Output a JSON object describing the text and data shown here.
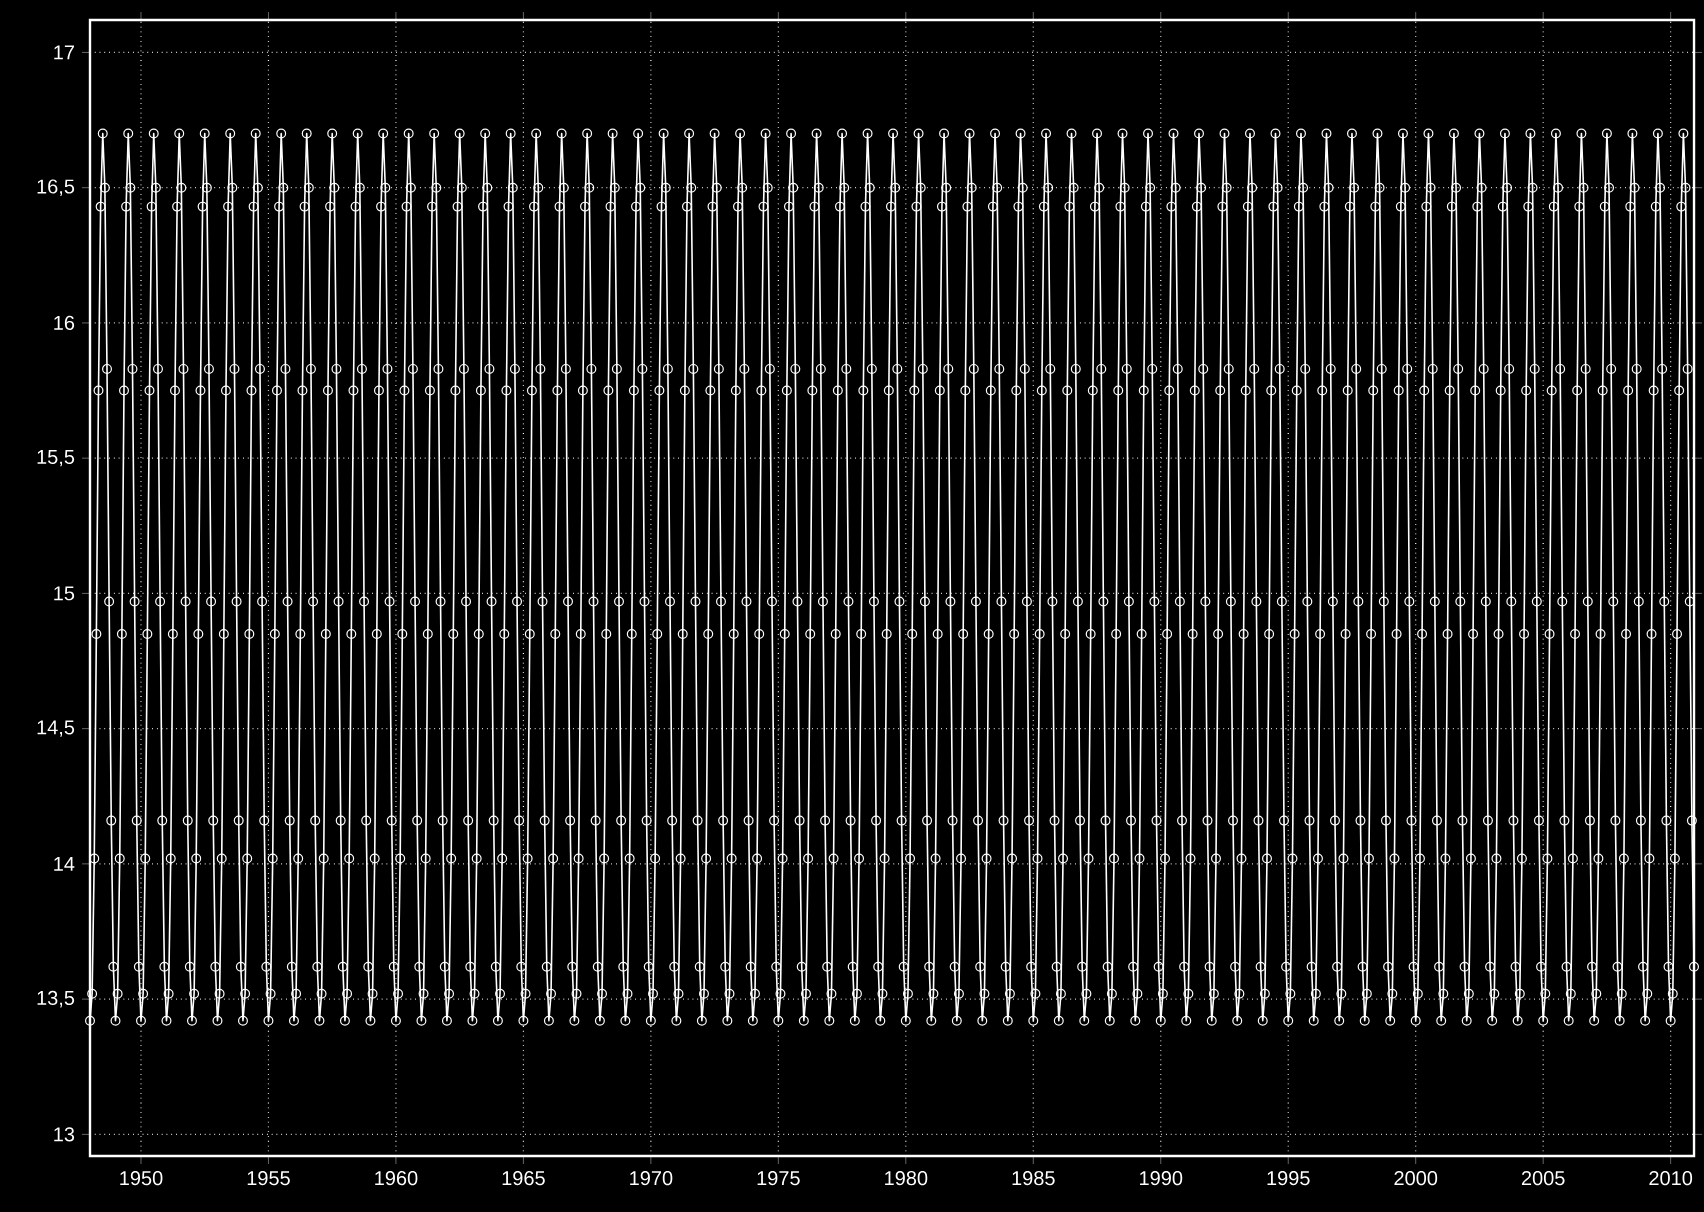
{
  "chart_data": {
    "type": "line",
    "color": "#ffffff",
    "marker": "circle",
    "line_style": "solid",
    "grid": true,
    "xlim": [
      "1948-01",
      "2010-12"
    ],
    "ylim": [
      12.92,
      17.12
    ],
    "xticks": [
      "1950",
      "1955",
      "1960",
      "1965",
      "1970",
      "1975",
      "1980",
      "1985",
      "1990",
      "1995",
      "2000",
      "2005",
      "2010"
    ],
    "yticks": [
      13,
      {
        "value": 13.5,
        "label": "13,5"
      },
      14,
      {
        "value": 14.5,
        "label": "14,5"
      },
      15,
      {
        "value": 15.5,
        "label": "15,5"
      },
      16,
      {
        "value": 16.5,
        "label": "16,5"
      },
      17
    ],
    "x": [
      "1948-01",
      "1948-02",
      "1948-03",
      "1948-04",
      "1948-05",
      "1948-06",
      "1948-07",
      "1948-08",
      "1948-09",
      "1948-10",
      "1948-11",
      "1948-12",
      "1949-01",
      "1949-02",
      "1949-03",
      "1949-04",
      "1949-05",
      "1949-06",
      "1949-07",
      "1949-08",
      "1949-09",
      "1949-10",
      "1949-11",
      "1949-12",
      "1950-01",
      "1950-02",
      "1950-03",
      "1950-04",
      "1950-05",
      "1950-06",
      "1950-07",
      "1950-08",
      "1950-09",
      "1950-10",
      "1950-11",
      "1950-12",
      "1951-01",
      "1951-02",
      "1951-03",
      "1951-04",
      "1951-05",
      "1951-06",
      "1951-07",
      "1951-08",
      "1951-09",
      "1951-10",
      "1951-11",
      "1951-12",
      "1952-01",
      "1952-02",
      "1952-03",
      "1952-04",
      "1952-05",
      "1952-06",
      "1952-07",
      "1952-08",
      "1952-09",
      "1952-10",
      "1952-11",
      "1952-12",
      "1953-01",
      "1953-02",
      "1953-03",
      "1953-04",
      "1953-05",
      "1953-06",
      "1953-07",
      "1953-08",
      "1953-09",
      "1953-10",
      "1953-11",
      "1953-12",
      "1954-01",
      "1954-02",
      "1954-03",
      "1954-04",
      "1954-05",
      "1954-06",
      "1954-07",
      "1954-08",
      "1954-09",
      "1954-10",
      "1954-11",
      "1954-12",
      "1955-01",
      "1955-02",
      "1955-03",
      "1955-04",
      "1955-05",
      "1955-06",
      "1955-07",
      "1955-08",
      "1955-09",
      "1955-10",
      "1955-11",
      "1955-12",
      "1956-01",
      "1956-02",
      "1956-03",
      "1956-04",
      "1956-05",
      "1956-06",
      "1956-07",
      "1956-08",
      "1956-09",
      "1956-10",
      "1956-11",
      "1956-12",
      "1957-01",
      "1957-02",
      "1957-03",
      "1957-04",
      "1957-05",
      "1957-06",
      "1957-07",
      "1957-08",
      "1957-09",
      "1957-10",
      "1957-11",
      "1957-12",
      "1958-01",
      "1958-02",
      "1958-03",
      "1958-04",
      "1958-05",
      "1958-06",
      "1958-07",
      "1958-08",
      "1958-09",
      "1958-10",
      "1958-11",
      "1958-12",
      "1959-01",
      "1959-02",
      "1959-03",
      "1959-04",
      "1959-05",
      "1959-06",
      "1959-07",
      "1959-08",
      "1959-09",
      "1959-10",
      "1959-11",
      "1959-12",
      "1960-01",
      "1960-02",
      "1960-03",
      "1960-04",
      "1960-05",
      "1960-06",
      "1960-07",
      "1960-08",
      "1960-09",
      "1960-10",
      "1960-11",
      "1960-12",
      "1961-01",
      "1961-02",
      "1961-03",
      "1961-04",
      "1961-05",
      "1961-06",
      "1961-07",
      "1961-08",
      "1961-09",
      "1961-10",
      "1961-11",
      "1961-12",
      "1962-01",
      "1962-02",
      "1962-03",
      "1962-04",
      "1962-05",
      "1962-06",
      "1962-07",
      "1962-08",
      "1962-09",
      "1962-10",
      "1962-11",
      "1962-12",
      "1963-01",
      "1963-02",
      "1963-03",
      "1963-04",
      "1963-05",
      "1963-06",
      "1963-07",
      "1963-08",
      "1963-09",
      "1963-10",
      "1963-11",
      "1963-12",
      "1964-01",
      "1964-02",
      "1964-03",
      "1964-04",
      "1964-05",
      "1964-06",
      "1964-07",
      "1964-08",
      "1964-09",
      "1964-10",
      "1964-11",
      "1964-12",
      "1965-01",
      "1965-02",
      "1965-03",
      "1965-04",
      "1965-05",
      "1965-06",
      "1965-07",
      "1965-08",
      "1965-09",
      "1965-10",
      "1965-11",
      "1965-12",
      "1966-01",
      "1966-02",
      "1966-03",
      "1966-04",
      "1966-05",
      "1966-06",
      "1966-07",
      "1966-08",
      "1966-09",
      "1966-10",
      "1966-11",
      "1966-12",
      "1967-01",
      "1967-02",
      "1967-03",
      "1967-04",
      "1967-05",
      "1967-06",
      "1967-07",
      "1967-08",
      "1967-09",
      "1967-10",
      "1967-11",
      "1967-12",
      "1968-01",
      "1968-02",
      "1968-03",
      "1968-04",
      "1968-05",
      "1968-06",
      "1968-07",
      "1968-08",
      "1968-09",
      "1968-10",
      "1968-11",
      "1968-12",
      "1969-01",
      "1969-02",
      "1969-03",
      "1969-04",
      "1969-05",
      "1969-06",
      "1969-07",
      "1969-08",
      "1969-09",
      "1969-10",
      "1969-11",
      "1969-12",
      "1970-01",
      "1970-02",
      "1970-03",
      "1970-04",
      "1970-05",
      "1970-06",
      "1970-07",
      "1970-08",
      "1970-09",
      "1970-10",
      "1970-11",
      "1970-12",
      "1971-01",
      "1971-02",
      "1971-03",
      "1971-04",
      "1971-05",
      "1971-06",
      "1971-07",
      "1971-08",
      "1971-09",
      "1971-10",
      "1971-11",
      "1971-12",
      "1972-01",
      "1972-02",
      "1972-03",
      "1972-04",
      "1972-05",
      "1972-06",
      "1972-07",
      "1972-08",
      "1972-09",
      "1972-10",
      "1972-11",
      "1972-12",
      "1973-01",
      "1973-02",
      "1973-03",
      "1973-04",
      "1973-05",
      "1973-06",
      "1973-07",
      "1973-08",
      "1973-09",
      "1973-10",
      "1973-11",
      "1973-12",
      "1974-01",
      "1974-02",
      "1974-03",
      "1974-04",
      "1974-05",
      "1974-06",
      "1974-07",
      "1974-08",
      "1974-09",
      "1974-10",
      "1974-11",
      "1974-12",
      "1975-01",
      "1975-02",
      "1975-03",
      "1975-04",
      "1975-05",
      "1975-06",
      "1975-07",
      "1975-08",
      "1975-09",
      "1975-10",
      "1975-11",
      "1975-12",
      "1976-01",
      "1976-02",
      "1976-03",
      "1976-04",
      "1976-05",
      "1976-06",
      "1976-07",
      "1976-08",
      "1976-09",
      "1976-10",
      "1976-11",
      "1976-12",
      "1977-01",
      "1977-02",
      "1977-03",
      "1977-04",
      "1977-05",
      "1977-06",
      "1977-07",
      "1977-08",
      "1977-09",
      "1977-10",
      "1977-11",
      "1977-12",
      "1978-01",
      "1978-02",
      "1978-03",
      "1978-04",
      "1978-05",
      "1978-06",
      "1978-07",
      "1978-08",
      "1978-09",
      "1978-10",
      "1978-11",
      "1978-12",
      "1979-01",
      "1979-02",
      "1979-03",
      "1979-04",
      "1979-05",
      "1979-06",
      "1979-07",
      "1979-08",
      "1979-09",
      "1979-10",
      "1979-11",
      "1979-12",
      "1980-01",
      "1980-02",
      "1980-03",
      "1980-04",
      "1980-05",
      "1980-06",
      "1980-07",
      "1980-08",
      "1980-09",
      "1980-10",
      "1980-11",
      "1980-12",
      "1981-01",
      "1981-02",
      "1981-03",
      "1981-04",
      "1981-05",
      "1981-06",
      "1981-07",
      "1981-08",
      "1981-09",
      "1981-10",
      "1981-11",
      "1981-12",
      "1982-01",
      "1982-02",
      "1982-03",
      "1982-04",
      "1982-05",
      "1982-06",
      "1982-07",
      "1982-08",
      "1982-09",
      "1982-10",
      "1982-11",
      "1982-12",
      "1983-01",
      "1983-02",
      "1983-03",
      "1983-04",
      "1983-05",
      "1983-06",
      "1983-07",
      "1983-08",
      "1983-09",
      "1983-10",
      "1983-11",
      "1983-12",
      "1984-01",
      "1984-02",
      "1984-03",
      "1984-04",
      "1984-05",
      "1984-06",
      "1984-07",
      "1984-08",
      "1984-09",
      "1984-10",
      "1984-11",
      "1984-12",
      "1985-01",
      "1985-02",
      "1985-03",
      "1985-04",
      "1985-05",
      "1985-06",
      "1985-07",
      "1985-08",
      "1985-09",
      "1985-10",
      "1985-11",
      "1985-12",
      "1986-01",
      "1986-02",
      "1986-03",
      "1986-04",
      "1986-05",
      "1986-06",
      "1986-07",
      "1986-08",
      "1986-09",
      "1986-10",
      "1986-11",
      "1986-12",
      "1987-01",
      "1987-02",
      "1987-03",
      "1987-04",
      "1987-05",
      "1987-06",
      "1987-07",
      "1987-08",
      "1987-09",
      "1987-10",
      "1987-11",
      "1987-12",
      "1988-01",
      "1988-02",
      "1988-03",
      "1988-04",
      "1988-05",
      "1988-06",
      "1988-07",
      "1988-08",
      "1988-09",
      "1988-10",
      "1988-11",
      "1988-12",
      "1989-01",
      "1989-02",
      "1989-03",
      "1989-04",
      "1989-05",
      "1989-06",
      "1989-07",
      "1989-08",
      "1989-09",
      "1989-10",
      "1989-11",
      "1989-12",
      "1990-01",
      "1990-02",
      "1990-03",
      "1990-04",
      "1990-05",
      "1990-06",
      "1990-07",
      "1990-08",
      "1990-09",
      "1990-10",
      "1990-11",
      "1990-12",
      "1991-01",
      "1991-02",
      "1991-03",
      "1991-04",
      "1991-05",
      "1991-06",
      "1991-07",
      "1991-08",
      "1991-09",
      "1991-10",
      "1991-11",
      "1991-12",
      "1992-01",
      "1992-02",
      "1992-03",
      "1992-04",
      "1992-05",
      "1992-06",
      "1992-07",
      "1992-08",
      "1992-09",
      "1992-10",
      "1992-11",
      "1992-12",
      "1993-01",
      "1993-02",
      "1993-03",
      "1993-04",
      "1993-05",
      "1993-06",
      "1993-07",
      "1993-08",
      "1993-09",
      "1993-10",
      "1993-11",
      "1993-12",
      "1994-01",
      "1994-02",
      "1994-03",
      "1994-04",
      "1994-05",
      "1994-06",
      "1994-07",
      "1994-08",
      "1994-09",
      "1994-10",
      "1994-11",
      "1994-12",
      "1995-01",
      "1995-02",
      "1995-03",
      "1995-04",
      "1995-05",
      "1995-06",
      "1995-07",
      "1995-08",
      "1995-09",
      "1995-10",
      "1995-11",
      "1995-12",
      "1996-01",
      "1996-02",
      "1996-03",
      "1996-04",
      "1996-05",
      "1996-06",
      "1996-07",
      "1996-08",
      "1996-09",
      "1996-10",
      "1996-11",
      "1996-12",
      "1997-01",
      "1997-02",
      "1997-03",
      "1997-04",
      "1997-05",
      "1997-06",
      "1997-07",
      "1997-08",
      "1997-09",
      "1997-10",
      "1997-11",
      "1997-12",
      "1998-01",
      "1998-02",
      "1998-03",
      "1998-04",
      "1998-05",
      "1998-06",
      "1998-07",
      "1998-08",
      "1998-09",
      "1998-10",
      "1998-11",
      "1998-12",
      "1999-01",
      "1999-02",
      "1999-03",
      "1999-04",
      "1999-05",
      "1999-06",
      "1999-07",
      "1999-08",
      "1999-09",
      "1999-10",
      "1999-11",
      "1999-12",
      "2000-01",
      "2000-02",
      "2000-03",
      "2000-04",
      "2000-05",
      "2000-06",
      "2000-07",
      "2000-08",
      "2000-09",
      "2000-10",
      "2000-11",
      "2000-12",
      "2001-01",
      "2001-02",
      "2001-03",
      "2001-04",
      "2001-05",
      "2001-06",
      "2001-07",
      "2001-08",
      "2001-09",
      "2001-10",
      "2001-11",
      "2001-12",
      "2002-01",
      "2002-02",
      "2002-03",
      "2002-04",
      "2002-05",
      "2002-06",
      "2002-07",
      "2002-08",
      "2002-09",
      "2002-10",
      "2002-11",
      "2002-12",
      "2003-01",
      "2003-02",
      "2003-03",
      "2003-04",
      "2003-05",
      "2003-06",
      "2003-07",
      "2003-08",
      "2003-09",
      "2003-10",
      "2003-11",
      "2003-12",
      "2004-01",
      "2004-02",
      "2004-03",
      "2004-04",
      "2004-05",
      "2004-06",
      "2004-07",
      "2004-08",
      "2004-09",
      "2004-10",
      "2004-11",
      "2004-12",
      "2005-01",
      "2005-02",
      "2005-03",
      "2005-04",
      "2005-05",
      "2005-06",
      "2005-07",
      "2005-08",
      "2005-09",
      "2005-10",
      "2005-11",
      "2005-12",
      "2006-01",
      "2006-02",
      "2006-03",
      "2006-04",
      "2006-05",
      "2006-06",
      "2006-07",
      "2006-08",
      "2006-09",
      "2006-10",
      "2006-11",
      "2006-12",
      "2007-01",
      "2007-02",
      "2007-03",
      "2007-04",
      "2007-05",
      "2007-06",
      "2007-07",
      "2007-08",
      "2007-09",
      "2007-10",
      "2007-11",
      "2007-12",
      "2008-01",
      "2008-02",
      "2008-03",
      "2008-04",
      "2008-05",
      "2008-06",
      "2008-07",
      "2008-08",
      "2008-09",
      "2008-10",
      "2008-11",
      "2008-12",
      "2009-01",
      "2009-02",
      "2009-03",
      "2009-04",
      "2009-05",
      "2009-06",
      "2009-07",
      "2009-08",
      "2009-09",
      "2009-10",
      "2009-11",
      "2009-12",
      "2010-01",
      "2010-02",
      "2010-03",
      "2010-04",
      "2010-05",
      "2010-06",
      "2010-07",
      "2010-08",
      "2010-09",
      "2010-10",
      "2010-11",
      "2010-12"
    ],
    "values": [
      13.42,
      13.52,
      14.02,
      14.85,
      15.75,
      16.43,
      16.7,
      16.5,
      15.83,
      14.97,
      14.16,
      13.62,
      13.42,
      13.52,
      14.02,
      14.85,
      15.75,
      16.43,
      16.7,
      16.5,
      15.83,
      14.97,
      14.16,
      13.62,
      13.42,
      13.52,
      14.02,
      14.85,
      15.75,
      16.43,
      16.7,
      16.5,
      15.83,
      14.97,
      14.16,
      13.62,
      13.42,
      13.52,
      14.02,
      14.85,
      15.75,
      16.43,
      16.7,
      16.5,
      15.83,
      14.97,
      14.16,
      13.62,
      13.42,
      13.52,
      14.02,
      14.85,
      15.75,
      16.43,
      16.7,
      16.5,
      15.83,
      14.97,
      14.16,
      13.62,
      13.42,
      13.52,
      14.02,
      14.85,
      15.75,
      16.43,
      16.7,
      16.5,
      15.83,
      14.97,
      14.16,
      13.62,
      13.42,
      13.52,
      14.02,
      14.85,
      15.75,
      16.43,
      16.7,
      16.5,
      15.83,
      14.97,
      14.16,
      13.62,
      13.42,
      13.52,
      14.02,
      14.85,
      15.75,
      16.43,
      16.7,
      16.5,
      15.83,
      14.97,
      14.16,
      13.62,
      13.42,
      13.52,
      14.02,
      14.85,
      15.75,
      16.43,
      16.7,
      16.5,
      15.83,
      14.97,
      14.16,
      13.62,
      13.42,
      13.52,
      14.02,
      14.85,
      15.75,
      16.43,
      16.7,
      16.5,
      15.83,
      14.97,
      14.16,
      13.62,
      13.42,
      13.52,
      14.02,
      14.85,
      15.75,
      16.43,
      16.7,
      16.5,
      15.83,
      14.97,
      14.16,
      13.62,
      13.42,
      13.52,
      14.02,
      14.85,
      15.75,
      16.43,
      16.7,
      16.5,
      15.83,
      14.97,
      14.16,
      13.62,
      13.42,
      13.52,
      14.02,
      14.85,
      15.75,
      16.43,
      16.7,
      16.5,
      15.83,
      14.97,
      14.16,
      13.62,
      13.42,
      13.52,
      14.02,
      14.85,
      15.75,
      16.43,
      16.7,
      16.5,
      15.83,
      14.97,
      14.16,
      13.62,
      13.42,
      13.52,
      14.02,
      14.85,
      15.75,
      16.43,
      16.7,
      16.5,
      15.83,
      14.97,
      14.16,
      13.62,
      13.42,
      13.52,
      14.02,
      14.85,
      15.75,
      16.43,
      16.7,
      16.5,
      15.83,
      14.97,
      14.16,
      13.62,
      13.42,
      13.52,
      14.02,
      14.85,
      15.75,
      16.43,
      16.7,
      16.5,
      15.83,
      14.97,
      14.16,
      13.62,
      13.42,
      13.52,
      14.02,
      14.85,
      15.75,
      16.43,
      16.7,
      16.5,
      15.83,
      14.97,
      14.16,
      13.62,
      13.42,
      13.52,
      14.02,
      14.85,
      15.75,
      16.43,
      16.7,
      16.5,
      15.83,
      14.97,
      14.16,
      13.62,
      13.42,
      13.52,
      14.02,
      14.85,
      15.75,
      16.43,
      16.7,
      16.5,
      15.83,
      14.97,
      14.16,
      13.62,
      13.42,
      13.52,
      14.02,
      14.85,
      15.75,
      16.43,
      16.7,
      16.5,
      15.83,
      14.97,
      14.16,
      13.62,
      13.42,
      13.52,
      14.02,
      14.85,
      15.75,
      16.43,
      16.7,
      16.5,
      15.83,
      14.97,
      14.16,
      13.62,
      13.42,
      13.52,
      14.02,
      14.85,
      15.75,
      16.43,
      16.7,
      16.5,
      15.83,
      14.97,
      14.16,
      13.62,
      13.42,
      13.52,
      14.02,
      14.85,
      15.75,
      16.43,
      16.7,
      16.5,
      15.83,
      14.97,
      14.16,
      13.62,
      13.42,
      13.52,
      14.02,
      14.85,
      15.75,
      16.43,
      16.7,
      16.5,
      15.83,
      14.97,
      14.16,
      13.62,
      13.42,
      13.52,
      14.02,
      14.85,
      15.75,
      16.43,
      16.7,
      16.5,
      15.83,
      14.97,
      14.16,
      13.62,
      13.42,
      13.52,
      14.02,
      14.85,
      15.75,
      16.43,
      16.7,
      16.5,
      15.83,
      14.97,
      14.16,
      13.62,
      13.42,
      13.52,
      14.02,
      14.85,
      15.75,
      16.43,
      16.7,
      16.5,
      15.83,
      14.97,
      14.16,
      13.62,
      13.42,
      13.52,
      14.02,
      14.85,
      15.75,
      16.43,
      16.7,
      16.5,
      15.83,
      14.97,
      14.16,
      13.62,
      13.42,
      13.52,
      14.02,
      14.85,
      15.75,
      16.43,
      16.7,
      16.5,
      15.83,
      14.97,
      14.16,
      13.62,
      13.42,
      13.52,
      14.02,
      14.85,
      15.75,
      16.43,
      16.7,
      16.5,
      15.83,
      14.97,
      14.16,
      13.62,
      13.42,
      13.52,
      14.02,
      14.85,
      15.75,
      16.43,
      16.7,
      16.5,
      15.83,
      14.97,
      14.16,
      13.62,
      13.42,
      13.52,
      14.02,
      14.85,
      15.75,
      16.43,
      16.7,
      16.5,
      15.83,
      14.97,
      14.16,
      13.62,
      13.42,
      13.52,
      14.02,
      14.85,
      15.75,
      16.43,
      16.7,
      16.5,
      15.83,
      14.97,
      14.16,
      13.62,
      13.42,
      13.52,
      14.02,
      14.85,
      15.75,
      16.43,
      16.7,
      16.5,
      15.83,
      14.97,
      14.16,
      13.62,
      13.42,
      13.52,
      14.02,
      14.85,
      15.75,
      16.43,
      16.7,
      16.5,
      15.83,
      14.97,
      14.16,
      13.62,
      13.42,
      13.52,
      14.02,
      14.85,
      15.75,
      16.43,
      16.7,
      16.5,
      15.83,
      14.97,
      14.16,
      13.62,
      13.42,
      13.52,
      14.02,
      14.85,
      15.75,
      16.43,
      16.7,
      16.5,
      15.83,
      14.97,
      14.16,
      13.62,
      13.42,
      13.52,
      14.02,
      14.85,
      15.75,
      16.43,
      16.7,
      16.5,
      15.83,
      14.97,
      14.16,
      13.62,
      13.42,
      13.52,
      14.02,
      14.85,
      15.75,
      16.43,
      16.7,
      16.5,
      15.83,
      14.97,
      14.16,
      13.62,
      13.42,
      13.52,
      14.02,
      14.85,
      15.75,
      16.43,
      16.7,
      16.5,
      15.83,
      14.97,
      14.16,
      13.62,
      13.42,
      13.52,
      14.02,
      14.85,
      15.75,
      16.43,
      16.7,
      16.5,
      15.83,
      14.97,
      14.16,
      13.62,
      13.42,
      13.52,
      14.02,
      14.85,
      15.75,
      16.43,
      16.7,
      16.5,
      15.83,
      14.97,
      14.16,
      13.62,
      13.42,
      13.52,
      14.02,
      14.85,
      15.75,
      16.43,
      16.7,
      16.5,
      15.83,
      14.97,
      14.16,
      13.62,
      13.42,
      13.52,
      14.02,
      14.85,
      15.75,
      16.43,
      16.7,
      16.5,
      15.83,
      14.97,
      14.16,
      13.62,
      13.42,
      13.52,
      14.02,
      14.85,
      15.75,
      16.43,
      16.7,
      16.5,
      15.83,
      14.97,
      14.16,
      13.62,
      13.42,
      13.52,
      14.02,
      14.85,
      15.75,
      16.43,
      16.7,
      16.5,
      15.83,
      14.97,
      14.16,
      13.62,
      13.42,
      13.52,
      14.02,
      14.85,
      15.75,
      16.43,
      16.7,
      16.5,
      15.83,
      14.97,
      14.16,
      13.62,
      13.42,
      13.52,
      14.02,
      14.85,
      15.75,
      16.43,
      16.7,
      16.5,
      15.83,
      14.97,
      14.16,
      13.62,
      13.42,
      13.52,
      14.02,
      14.85,
      15.75,
      16.43,
      16.7,
      16.5,
      15.83,
      14.97,
      14.16,
      13.62,
      13.42,
      13.52,
      14.02,
      14.85,
      15.75,
      16.43,
      16.7,
      16.5,
      15.83,
      14.97,
      14.16,
      13.62,
      13.42,
      13.52,
      14.02,
      14.85,
      15.75,
      16.43,
      16.7,
      16.5,
      15.83,
      14.97,
      14.16,
      13.62,
      13.42,
      13.52,
      14.02,
      14.85,
      15.75,
      16.43,
      16.7,
      16.5,
      15.83,
      14.97,
      14.16,
      13.62,
      13.42,
      13.52,
      14.02,
      14.85,
      15.75,
      16.43,
      16.7,
      16.5,
      15.83,
      14.97,
      14.16,
      13.62,
      13.42,
      13.52,
      14.02,
      14.85,
      15.75,
      16.43,
      16.7,
      16.5,
      15.83,
      14.97,
      14.16,
      13.62,
      13.42,
      13.52,
      14.02,
      14.85,
      15.75,
      16.43,
      16.7,
      16.5,
      15.83,
      14.97,
      14.16,
      13.62,
      13.42,
      13.52,
      14.02,
      14.85,
      15.75,
      16.43,
      16.7,
      16.5,
      15.83,
      14.97,
      14.16,
      13.62,
      13.42,
      13.52,
      14.02,
      14.85,
      15.75,
      16.43,
      16.7,
      16.5,
      15.83,
      14.97,
      14.16,
      13.62,
      13.42,
      13.52,
      14.02,
      14.85,
      15.75,
      16.43,
      16.7,
      16.5,
      15.83,
      14.97,
      14.16,
      13.62,
      13.42,
      13.52,
      14.02,
      14.85,
      15.75,
      16.43,
      16.7,
      16.5,
      15.83,
      14.97,
      14.16,
      13.62,
      13.42,
      13.52,
      14.02,
      14.85,
      15.75,
      16.43,
      16.7,
      16.5,
      15.83,
      14.97,
      14.16,
      13.62,
      13.42,
      13.52,
      14.02,
      14.85,
      15.75,
      16.43,
      16.7,
      16.5,
      15.83,
      14.97,
      14.16,
      13.62,
      13.42,
      13.52,
      14.02,
      14.85,
      15.75,
      16.43,
      16.7,
      16.5,
      15.83,
      14.97,
      14.16,
      13.62
    ]
  }
}
